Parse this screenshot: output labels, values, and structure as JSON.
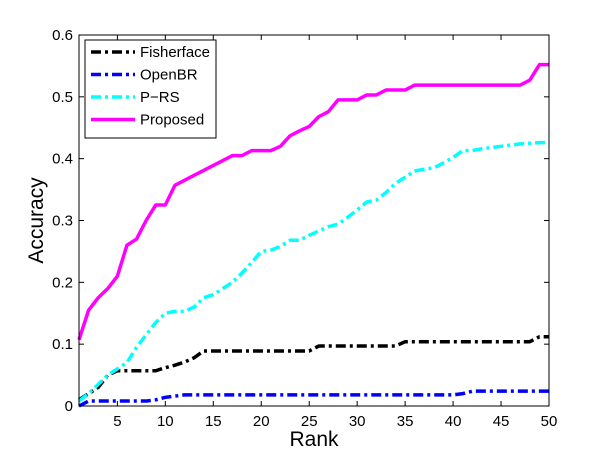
{
  "chart_data": {
    "type": "line",
    "xlabel": "Rank",
    "ylabel": "Accuracy",
    "xlim": [
      1,
      50
    ],
    "ylim": [
      0,
      0.6
    ],
    "xticks": [
      5,
      10,
      15,
      20,
      25,
      30,
      35,
      40,
      45,
      50
    ],
    "yticks": [
      0,
      0.1,
      0.2,
      0.3,
      0.4,
      0.5,
      0.6
    ],
    "grid": false,
    "legend_position": "top-left",
    "series": [
      {
        "name": "Fisherface",
        "color": "#000000",
        "style": "dash-dot",
        "points": [
          [
            1,
            0.01
          ],
          [
            2,
            0.02
          ],
          [
            3,
            0.03
          ],
          [
            4,
            0.05
          ],
          [
            5,
            0.057
          ],
          [
            6,
            0.057
          ],
          [
            7,
            0.057
          ],
          [
            8,
            0.057
          ],
          [
            9,
            0.057
          ],
          [
            10,
            0.062
          ],
          [
            11,
            0.066
          ],
          [
            12,
            0.071
          ],
          [
            13,
            0.078
          ],
          [
            14,
            0.089
          ],
          [
            15,
            0.089
          ],
          [
            20,
            0.089
          ],
          [
            25,
            0.089
          ],
          [
            26,
            0.097
          ],
          [
            33,
            0.097
          ],
          [
            34,
            0.097
          ],
          [
            35,
            0.104
          ],
          [
            47,
            0.104
          ],
          [
            48,
            0.104
          ],
          [
            49,
            0.112
          ],
          [
            50,
            0.112
          ]
        ]
      },
      {
        "name": "OpenBR",
        "color": "#0000ff",
        "style": "dash-dot",
        "points": [
          [
            1,
            0.0
          ],
          [
            2,
            0.008
          ],
          [
            8,
            0.008
          ],
          [
            9,
            0.01
          ],
          [
            10,
            0.014
          ],
          [
            11,
            0.016
          ],
          [
            12,
            0.018
          ],
          [
            40,
            0.018
          ],
          [
            41,
            0.02
          ],
          [
            42,
            0.024
          ],
          [
            50,
            0.024
          ]
        ]
      },
      {
        "name": "P−RS",
        "color": "#00ffff",
        "style": "dash-dot",
        "points": [
          [
            1,
            0.008
          ],
          [
            2,
            0.02
          ],
          [
            3,
            0.035
          ],
          [
            4,
            0.05
          ],
          [
            5,
            0.06
          ],
          [
            6,
            0.07
          ],
          [
            7,
            0.095
          ],
          [
            8,
            0.115
          ],
          [
            9,
            0.135
          ],
          [
            10,
            0.15
          ],
          [
            11,
            0.153
          ],
          [
            12,
            0.153
          ],
          [
            13,
            0.16
          ],
          [
            14,
            0.175
          ],
          [
            15,
            0.18
          ],
          [
            16,
            0.19
          ],
          [
            17,
            0.2
          ],
          [
            18,
            0.215
          ],
          [
            19,
            0.232
          ],
          [
            20,
            0.25
          ],
          [
            21,
            0.252
          ],
          [
            22,
            0.258
          ],
          [
            23,
            0.268
          ],
          [
            24,
            0.268
          ],
          [
            25,
            0.276
          ],
          [
            26,
            0.283
          ],
          [
            27,
            0.29
          ],
          [
            28,
            0.294
          ],
          [
            29,
            0.305
          ],
          [
            30,
            0.317
          ],
          [
            31,
            0.33
          ],
          [
            32,
            0.333
          ],
          [
            33,
            0.345
          ],
          [
            34,
            0.36
          ],
          [
            35,
            0.37
          ],
          [
            36,
            0.38
          ],
          [
            37,
            0.383
          ],
          [
            38,
            0.385
          ],
          [
            39,
            0.393
          ],
          [
            40,
            0.402
          ],
          [
            41,
            0.413
          ],
          [
            42,
            0.413
          ],
          [
            43,
            0.416
          ],
          [
            44,
            0.418
          ],
          [
            45,
            0.42
          ],
          [
            46,
            0.422
          ],
          [
            47,
            0.424
          ],
          [
            48,
            0.425
          ],
          [
            49,
            0.426
          ],
          [
            50,
            0.426
          ]
        ]
      },
      {
        "name": "Proposed",
        "color": "#ff00ff",
        "style": "solid",
        "points": [
          [
            1,
            0.107
          ],
          [
            2,
            0.155
          ],
          [
            3,
            0.175
          ],
          [
            4,
            0.19
          ],
          [
            5,
            0.21
          ],
          [
            6,
            0.26
          ],
          [
            7,
            0.27
          ],
          [
            8,
            0.3
          ],
          [
            9,
            0.325
          ],
          [
            10,
            0.325
          ],
          [
            11,
            0.357
          ],
          [
            12,
            0.365
          ],
          [
            13,
            0.373
          ],
          [
            14,
            0.381
          ],
          [
            15,
            0.389
          ],
          [
            16,
            0.397
          ],
          [
            17,
            0.405
          ],
          [
            18,
            0.405
          ],
          [
            19,
            0.413
          ],
          [
            20,
            0.413
          ],
          [
            21,
            0.413
          ],
          [
            22,
            0.42
          ],
          [
            23,
            0.437
          ],
          [
            24,
            0.445
          ],
          [
            25,
            0.452
          ],
          [
            26,
            0.468
          ],
          [
            27,
            0.476
          ],
          [
            28,
            0.495
          ],
          [
            29,
            0.495
          ],
          [
            30,
            0.495
          ],
          [
            31,
            0.503
          ],
          [
            32,
            0.503
          ],
          [
            33,
            0.511
          ],
          [
            34,
            0.511
          ],
          [
            35,
            0.511
          ],
          [
            36,
            0.519
          ],
          [
            46,
            0.519
          ],
          [
            47,
            0.519
          ],
          [
            48,
            0.527
          ],
          [
            49,
            0.552
          ],
          [
            50,
            0.552
          ]
        ]
      }
    ]
  }
}
